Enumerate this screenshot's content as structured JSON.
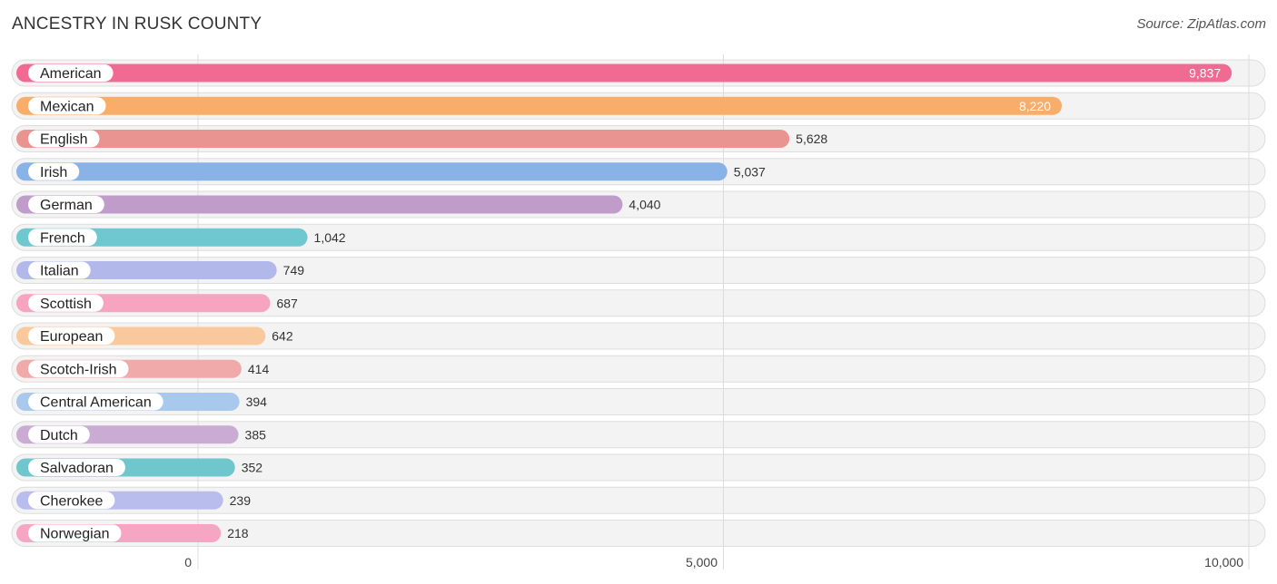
{
  "header": {
    "title": "ANCESTRY IN RUSK COUNTY",
    "source": "Source: ZipAtlas.com"
  },
  "chart_data": {
    "type": "bar",
    "orientation": "horizontal",
    "title": "ANCESTRY IN RUSK COUNTY",
    "xlabel": "",
    "ylabel": "",
    "xlim": [
      0,
      10000
    ],
    "ticks": [
      0,
      5000,
      10000
    ],
    "tick_labels": [
      "0",
      "5,000",
      "10,000"
    ],
    "grid": true,
    "categories": [
      "American",
      "Mexican",
      "English",
      "Irish",
      "German",
      "French",
      "Italian",
      "Scottish",
      "European",
      "Scotch-Irish",
      "Central American",
      "Dutch",
      "Salvadoran",
      "Cherokee",
      "Norwegian"
    ],
    "values": [
      9837,
      8220,
      5628,
      5037,
      4040,
      1042,
      749,
      687,
      642,
      414,
      394,
      385,
      352,
      239,
      218
    ],
    "value_labels": [
      "9,837",
      "8,220",
      "5,628",
      "5,037",
      "4,040",
      "1,042",
      "749",
      "687",
      "642",
      "414",
      "394",
      "385",
      "352",
      "239",
      "218"
    ],
    "colors": [
      "#f06a93",
      "#f8ae6a",
      "#e99490",
      "#89b2e6",
      "#c09ccb",
      "#6fc7cf",
      "#b2b9ea",
      "#f6a4c0",
      "#f9c99d",
      "#f1aaaa",
      "#a8c8ec",
      "#c9abd3",
      "#6fc6cd",
      "#b9bdee",
      "#f6a6c3"
    ]
  }
}
